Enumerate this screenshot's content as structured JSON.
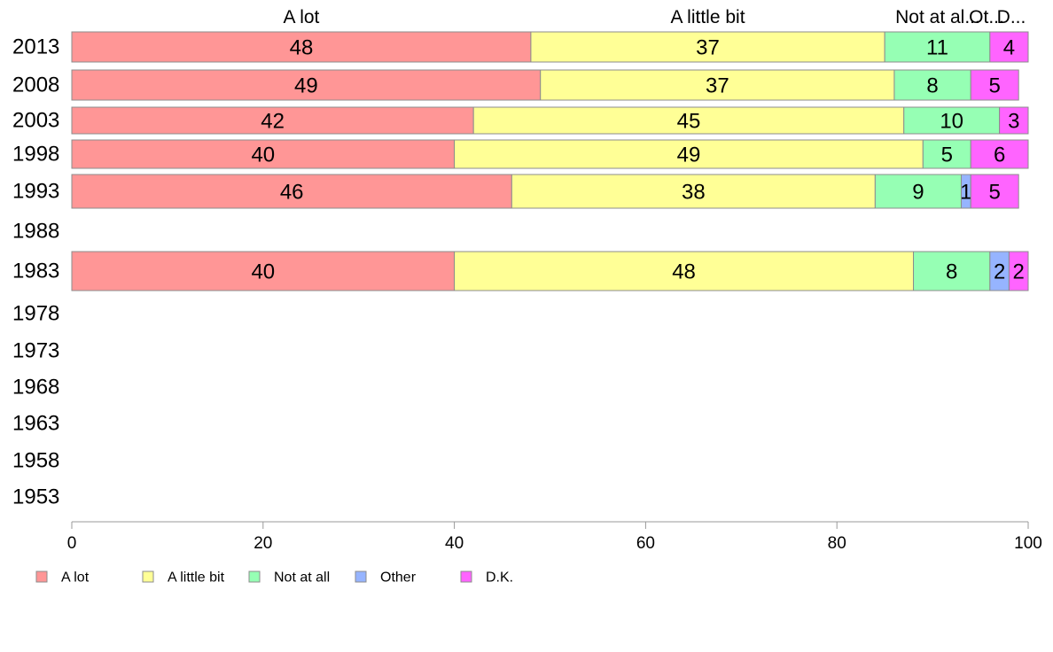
{
  "chart_data": {
    "type": "bar",
    "orientation": "horizontal",
    "stacked": true,
    "categories": [
      "2013",
      "2008",
      "2003",
      "1998",
      "1993",
      "1988",
      "1983",
      "1978",
      "1973",
      "1968",
      "1963",
      "1958",
      "1953"
    ],
    "series": [
      {
        "name": "A lot",
        "color": "#ff9696",
        "values": [
          48,
          49,
          42,
          40,
          46,
          null,
          40,
          null,
          null,
          null,
          null,
          null,
          null
        ]
      },
      {
        "name": "A little bit",
        "color": "#ffff96",
        "values": [
          37,
          37,
          45,
          49,
          38,
          null,
          48,
          null,
          null,
          null,
          null,
          null,
          null
        ]
      },
      {
        "name": "Not at all",
        "color": "#96ffb4",
        "values": [
          11,
          8,
          10,
          5,
          9,
          null,
          8,
          null,
          null,
          null,
          null,
          null,
          null
        ]
      },
      {
        "name": "Other",
        "color": "#96b4ff",
        "values": [
          0,
          0,
          0,
          0,
          1,
          null,
          2,
          null,
          null,
          null,
          null,
          null,
          null
        ]
      },
      {
        "name": "D.K.",
        "color": "#ff64ff",
        "values": [
          4,
          5,
          3,
          6,
          5,
          null,
          2,
          null,
          null,
          null,
          null,
          null,
          null
        ]
      }
    ],
    "top_labels": [
      "A lot",
      "A little bit",
      "Not at al...",
      "Ot...",
      "D..."
    ],
    "xlim": [
      0,
      100
    ],
    "x_ticks": [
      "0",
      "20",
      "40",
      "60",
      "80",
      "100"
    ],
    "grid": false,
    "legend_position": "bottom-left",
    "title": "",
    "xlabel": "",
    "ylabel": ""
  }
}
